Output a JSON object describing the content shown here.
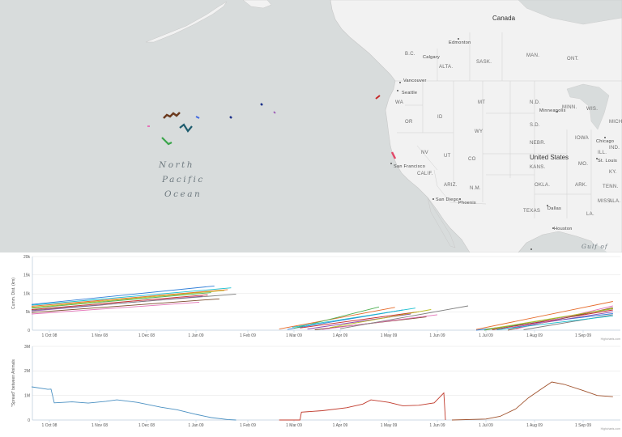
{
  "map": {
    "labels": {
      "canada": "Canada",
      "united_states": "United States",
      "ocean_line1": "North",
      "ocean_line2": "Pacific",
      "ocean_line3": "Ocean",
      "gulf": "Gulf of",
      "edmonton": "Edmonton",
      "vancouver": "Vancouver",
      "seattle": "Seattle",
      "san_francisco": "San Francisco",
      "san_diego": "San Diego",
      "phoenix": "Phoenix",
      "dallas": "Dallas",
      "houston": "Houston",
      "chicago": "Chicago",
      "minneapolis": "Minneapolis",
      "st_louis": "St. Louis",
      "calgary": "Calgary"
    },
    "states": [
      "WA",
      "OR",
      "ID",
      "MT",
      "WY",
      "NV",
      "UT",
      "CO",
      "CALIF.",
      "ARIZ.",
      "N.M.",
      "TEXAS",
      "OKLA.",
      "KANS.",
      "NEBR.",
      "S.D.",
      "N.D.",
      "MINN.",
      "IOWA",
      "MO.",
      "ARK.",
      "LA.",
      "MISS.",
      "ILL.",
      "WIS.",
      "MICH.",
      "IND.",
      "KY.",
      "TENN.",
      "ALA.",
      "B.C.",
      "ALTA.",
      "SASK.",
      "MAN.",
      "ONT."
    ],
    "colors": {
      "ocean": "#d8dcdc",
      "land": "#f2f2f2",
      "border": "#c8c8c8"
    }
  },
  "chart_data": [
    {
      "type": "line",
      "ylabel": "Cumm. Dist. (km)",
      "yticks": [
        "0",
        "5k",
        "10k",
        "15k",
        "20k"
      ],
      "ylim": [
        0,
        20000
      ],
      "xticks": [
        "1 Oct 08",
        "1 Nov 08",
        "1 Dec 08",
        "1 Jan 09",
        "1 Feb 09",
        "1 Mar 09",
        "1 Apr 09",
        "1 May 09",
        "1 Jun 09",
        "1 Jul 09",
        "1 Aug 09",
        "1 Sep 09"
      ],
      "credit": "Highcharts.com",
      "series": [
        {
          "color": "#2f7ed8",
          "segments": [
            [
              [
                "2008-09-20",
                7000
              ],
              [
                "2009-01-12",
                12000
              ]
            ],
            [
              [
                "2009-02-25",
                200
              ],
              [
                "2009-05-10",
                5500
              ]
            ],
            [
              [
                "2009-06-25",
                0
              ],
              [
                "2009-09-20",
                4500
              ]
            ]
          ]
        },
        {
          "color": "#e66b2b",
          "segments": [
            [
              [
                "2008-09-20",
                6500
              ],
              [
                "2009-01-20",
                11000
              ]
            ],
            [
              [
                "2009-02-20",
                300
              ],
              [
                "2009-05-05",
                6200
              ]
            ],
            [
              [
                "2009-06-25",
                200
              ],
              [
                "2009-09-20",
                7800
              ]
            ]
          ]
        },
        {
          "color": "#4caf50",
          "segments": [
            [
              [
                "2008-09-20",
                6000
              ],
              [
                "2009-01-10",
                10200
              ]
            ],
            [
              [
                "2009-03-01",
                500
              ],
              [
                "2009-04-25",
                6300
              ]
            ],
            [
              [
                "2009-06-30",
                0
              ],
              [
                "2009-09-20",
                5800
              ]
            ]
          ]
        },
        {
          "color": "#c62828",
          "segments": [
            [
              [
                "2008-09-20",
                5600
              ],
              [
                "2009-01-08",
                9600
              ]
            ],
            [
              [
                "2009-03-05",
                600
              ],
              [
                "2009-05-20",
                5000
              ]
            ],
            [
              [
                "2009-07-05",
                100
              ],
              [
                "2009-09-20",
                5500
              ]
            ]
          ]
        },
        {
          "color": "#8e44ad",
          "segments": [
            [
              [
                "2008-09-20",
                5200
              ],
              [
                "2009-01-05",
                9200
              ]
            ],
            [
              [
                "2009-03-10",
                300
              ],
              [
                "2009-05-15",
                4400
              ]
            ],
            [
              [
                "2009-07-10",
                200
              ],
              [
                "2009-09-20",
                5000
              ]
            ]
          ]
        },
        {
          "color": "#7a4b2b",
          "segments": [
            [
              [
                "2008-09-20",
                4800
              ],
              [
                "2009-01-15",
                8500
              ]
            ],
            [
              [
                "2009-03-15",
                100
              ],
              [
                "2009-05-25",
                3600
              ]
            ],
            [
              [
                "2009-07-15",
                0
              ],
              [
                "2009-09-20",
                6100
              ]
            ]
          ]
        },
        {
          "color": "#e573b8",
          "segments": [
            [
              [
                "2008-09-20",
                4400
              ],
              [
                "2009-01-03",
                7600
              ]
            ],
            [
              [
                "2009-03-20",
                200
              ],
              [
                "2009-06-01",
                4200
              ]
            ],
            [
              [
                "2009-07-20",
                300
              ],
              [
                "2009-09-20",
                6600
              ]
            ]
          ]
        },
        {
          "color": "#7f7f7f",
          "segments": [
            [
              [
                "2008-09-20",
                5400
              ],
              [
                "2009-01-25",
                9800
              ]
            ],
            [
              [
                "2009-04-01",
                400
              ],
              [
                "2009-06-20",
                6600
              ]
            ],
            [
              [
                "2009-07-25",
                100
              ],
              [
                "2009-09-20",
                4200
              ]
            ]
          ]
        },
        {
          "color": "#bcbd22",
          "segments": [
            [
              [
                "2008-09-20",
                6200
              ],
              [
                "2009-01-18",
                10800
              ]
            ],
            [
              [
                "2009-03-25",
                700
              ],
              [
                "2009-05-28",
                5600
              ]
            ],
            [
              [
                "2009-07-01",
                200
              ],
              [
                "2009-09-20",
                5900
              ]
            ]
          ]
        },
        {
          "color": "#17becf",
          "segments": [
            [
              [
                "2008-09-20",
                6800
              ],
              [
                "2009-01-22",
                11500
              ]
            ],
            [
              [
                "2009-02-28",
                800
              ],
              [
                "2009-05-18",
                6000
              ]
            ],
            [
              [
                "2009-07-08",
                100
              ],
              [
                "2009-09-20",
                3900
              ]
            ]
          ]
        }
      ]
    },
    {
      "type": "line",
      "ylabel": "\"Spread\" between Animals",
      "yticks": [
        "0",
        "1M",
        "2M",
        "3M"
      ],
      "ylim": [
        0,
        3000000
      ],
      "xticks": [
        "1 Oct 08",
        "1 Nov 08",
        "1 Dec 08",
        "1 Jan 09",
        "1 Feb 09",
        "1 Mar 09",
        "1 Apr 09",
        "1 May 09",
        "1 Jun 09",
        "1 Jul 09",
        "1 Aug 09",
        "1 Sep 09"
      ],
      "credit": "Highcharts.com",
      "series": [
        {
          "color": "#4a90c2",
          "segments": [
            [
              [
                "2008-09-20",
                1350000
              ],
              [
                "2008-09-30",
                1250000
              ],
              [
                "2008-10-02",
                1260000
              ],
              [
                "2008-10-04",
                700000
              ],
              [
                "2008-10-15",
                740000
              ],
              [
                "2008-10-25",
                690000
              ],
              [
                "2008-11-05",
                760000
              ],
              [
                "2008-11-12",
                820000
              ],
              [
                "2008-11-25",
                720000
              ],
              [
                "2008-12-10",
                520000
              ],
              [
                "2008-12-20",
                420000
              ],
              [
                "2009-01-01",
                230000
              ],
              [
                "2009-01-10",
                100000
              ],
              [
                "2009-01-20",
                20000
              ],
              [
                "2009-01-25",
                0
              ]
            ]
          ]
        },
        {
          "color": "#c0392b",
          "segments": [
            [
              [
                "2009-02-20",
                0
              ],
              [
                "2009-03-05",
                0
              ],
              [
                "2009-03-06",
                320000
              ],
              [
                "2009-03-20",
                380000
              ],
              [
                "2009-04-05",
                500000
              ],
              [
                "2009-04-15",
                650000
              ],
              [
                "2009-04-20",
                820000
              ],
              [
                "2009-05-01",
                720000
              ],
              [
                "2009-05-10",
                580000
              ],
              [
                "2009-05-20",
                600000
              ],
              [
                "2009-05-30",
                700000
              ],
              [
                "2009-06-05",
                1100000
              ],
              [
                "2009-06-06",
                0
              ]
            ]
          ]
        },
        {
          "color": "#a0522d",
          "segments": [
            [
              [
                "2009-06-10",
                0
              ],
              [
                "2009-07-01",
                40000
              ],
              [
                "2009-07-10",
                150000
              ],
              [
                "2009-07-20",
                450000
              ],
              [
                "2009-07-28",
                900000
              ],
              [
                "2009-08-05",
                1250000
              ],
              [
                "2009-08-12",
                1550000
              ],
              [
                "2009-08-20",
                1450000
              ],
              [
                "2009-09-01",
                1200000
              ],
              [
                "2009-09-10",
                1000000
              ],
              [
                "2009-09-20",
                950000
              ]
            ]
          ]
        }
      ]
    }
  ]
}
